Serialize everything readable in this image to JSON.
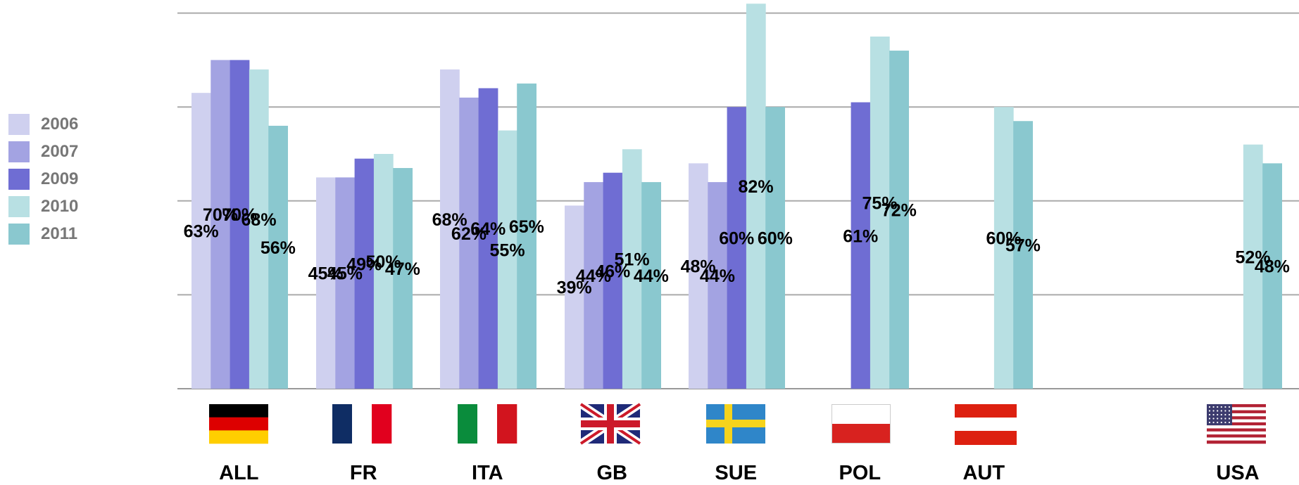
{
  "chart_data": {
    "type": "bar",
    "categories": [
      "ALL",
      "FR",
      "ITA",
      "GB",
      "SUE",
      "POL",
      "AUT",
      "USA"
    ],
    "flags": [
      "germany-flag",
      "france-flag",
      "italy-flag",
      "uk-flag",
      "sweden-flag",
      "poland-flag",
      "austria-flag",
      "usa-flag"
    ],
    "series": [
      {
        "name": "2006",
        "color": "#cfd0ef",
        "values": [
          63,
          45,
          68,
          39,
          48,
          null,
          null,
          null
        ],
        "labels": [
          "63%",
          "45%",
          "68%",
          "39%",
          "48%",
          null,
          null,
          null
        ]
      },
      {
        "name": "2007",
        "color": "#a3a3e2",
        "values": [
          70,
          45,
          62,
          44,
          44,
          null,
          null,
          null
        ],
        "labels": [
          "70%",
          "45%",
          "62%",
          "44%",
          "44%",
          null,
          null,
          null
        ]
      },
      {
        "name": "2009",
        "color": "#6f6dd3",
        "values": [
          70,
          49,
          64,
          46,
          60,
          61,
          null,
          null
        ],
        "labels": [
          "70%",
          "49%",
          "64%",
          "46%",
          "60%",
          "61%",
          null,
          null
        ]
      },
      {
        "name": "2010",
        "color": "#b8e0e3",
        "values": [
          68,
          50,
          55,
          51,
          82,
          75,
          60,
          52
        ],
        "labels": [
          "68%",
          "50%",
          "55%",
          "51%",
          "82%",
          "75%",
          "60%",
          "52%"
        ]
      },
      {
        "name": "2011",
        "color": "#8ac8cf",
        "values": [
          56,
          47,
          65,
          44,
          60,
          72,
          57,
          48
        ],
        "labels": [
          "56%",
          "47%",
          "65%",
          "44%",
          "60%",
          "72%",
          "57%",
          "48%"
        ]
      }
    ],
    "ylim": [
      0,
      80
    ],
    "grid": true,
    "legend_position": "left"
  }
}
